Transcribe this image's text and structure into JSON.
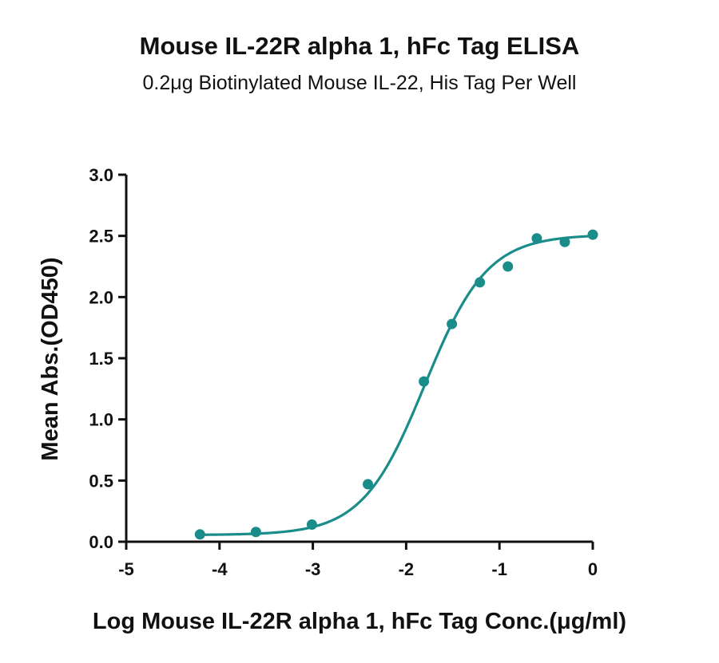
{
  "chart_data": {
    "type": "scatter",
    "title": "Mouse IL-22R alpha 1, hFc Tag ELISA",
    "subtitle": "0.2μg Biotinylated Mouse IL-22, His Tag Per Well",
    "xlabel": "Log Mouse IL-22R alpha 1, hFc  Tag Conc.(μg/ml)",
    "ylabel": "Mean Abs.(OD450)",
    "xlim": [
      -5,
      0
    ],
    "ylim": [
      0,
      3.0
    ],
    "x_ticks": [
      "-5",
      "-4",
      "-3",
      "-2",
      "-1",
      "0"
    ],
    "y_ticks": [
      "0.0",
      "0.5",
      "1.0",
      "1.5",
      "2.0",
      "2.5",
      "3.0"
    ],
    "grid": false,
    "series": [
      {
        "points": [
          {
            "x": -4.21,
            "y": 0.06
          },
          {
            "x": -3.61,
            "y": 0.08
          },
          {
            "x": -3.01,
            "y": 0.14
          },
          {
            "x": -2.41,
            "y": 0.47
          },
          {
            "x": -1.81,
            "y": 1.31
          },
          {
            "x": -1.51,
            "y": 1.78
          },
          {
            "x": -1.21,
            "y": 2.12
          },
          {
            "x": -0.91,
            "y": 2.25
          },
          {
            "x": -0.6,
            "y": 2.48
          },
          {
            "x": -0.3,
            "y": 2.45
          },
          {
            "x": 0.0,
            "y": 2.51
          }
        ],
        "fit": {
          "model": "4PL",
          "bottom": 0.055,
          "top": 2.51,
          "logEC50": -1.8,
          "hill": 1.3
        }
      }
    ],
    "color": "#1a8c8a"
  }
}
